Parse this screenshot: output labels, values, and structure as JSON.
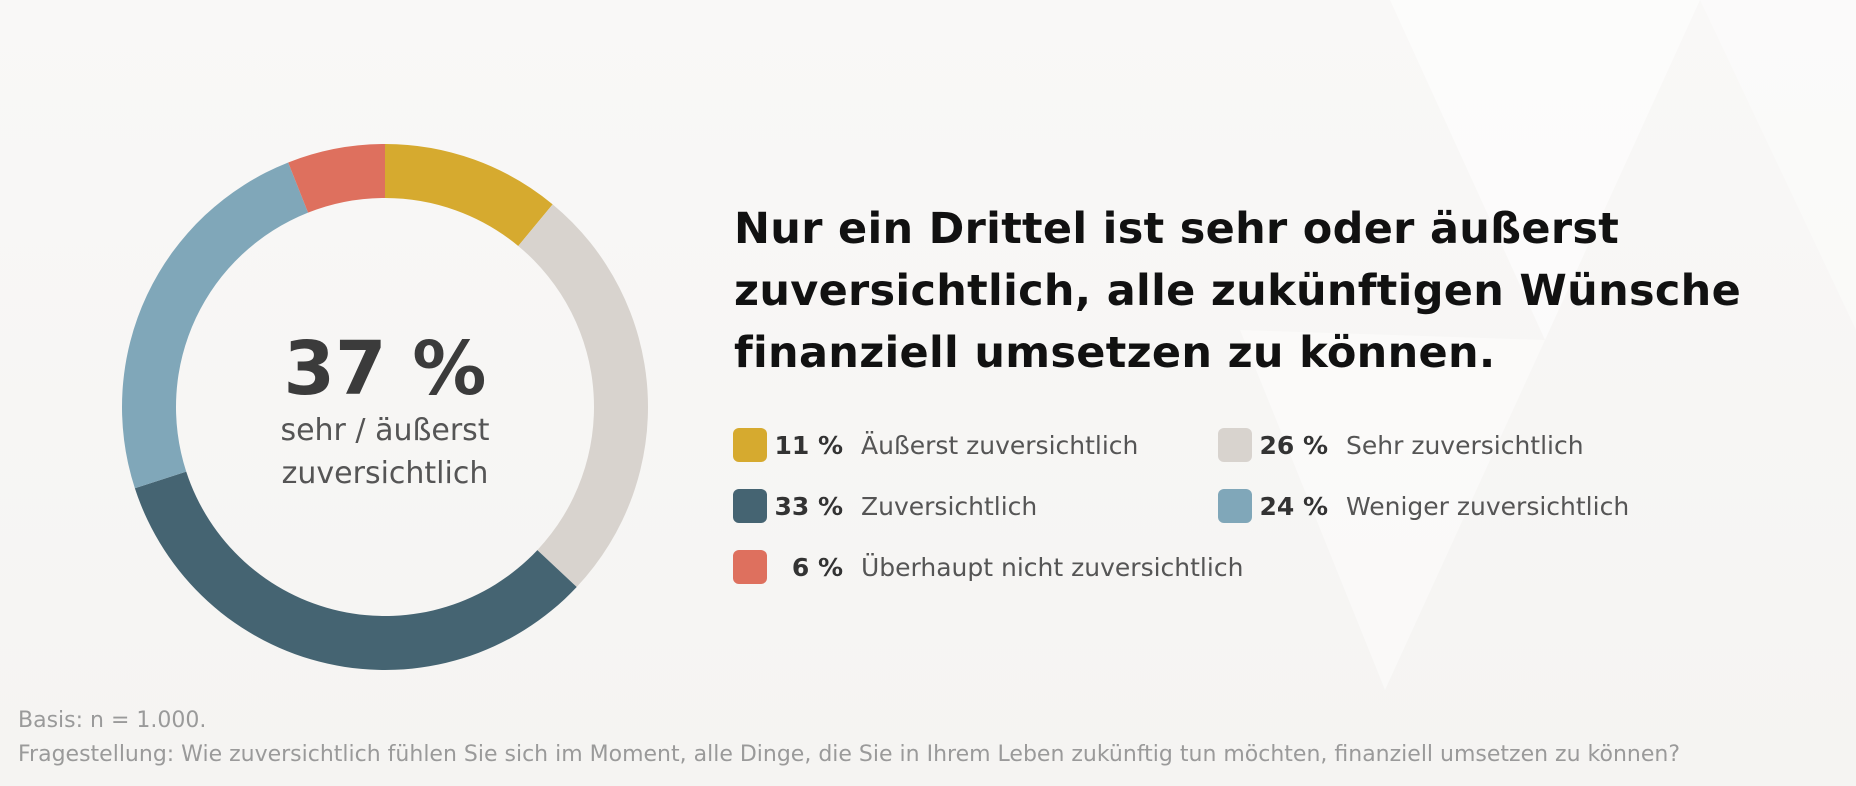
{
  "chart_data": {
    "type": "pie",
    "categories": [
      "Äußerst zuversichtlich",
      "Sehr zuversichtlich",
      "Zuversichtlich",
      "Weniger zuversichtlich",
      "Überhaupt nicht zuversichtlich"
    ],
    "values": [
      11,
      26,
      33,
      24,
      6
    ],
    "colors": [
      "#d6aa2f",
      "#d8d3ce",
      "#456472",
      "#80a7b9",
      "#de705e"
    ],
    "title": "Nur ein Drittel ist sehr oder äußerst zuversichtlich, alle zukünftigen Wünsche finanziell umsetzen zu können.",
    "center": {
      "value": "37 %",
      "label_line1": "sehr / äußerst",
      "label_line2": "zuversichtlich"
    },
    "legend": [
      {
        "pct": "11 %",
        "label": "Äußerst zuversichtlich",
        "color": "#d6aa2f"
      },
      {
        "pct": "26 %",
        "label": "Sehr zuversichtlich",
        "color": "#d8d3ce"
      },
      {
        "pct": "33 %",
        "label": "Zuversichtlich",
        "color": "#456472"
      },
      {
        "pct": "24 %",
        "label": "Weniger zuversichtlich",
        "color": "#80a7b9"
      },
      {
        "pct": "6 %",
        "label": "Überhaupt nicht zuversichtlich",
        "color": "#de705e"
      }
    ],
    "legend_placement": "right"
  },
  "headline": {
    "line1": "Nur ein Drittel ist sehr oder äußerst",
    "line2": "zuversichtlich, alle zukünftigen Wünsche",
    "line3": "finanziell umsetzen zu können."
  },
  "footer": {
    "basis": "Basis: n = 1.000.",
    "question": "Fragestellung: Wie zuversichtlich fühlen Sie sich im Moment, alle Dinge, die Sie in Ihrem Leben zukünftig tun möchten, finanziell umsetzen zu können?"
  }
}
